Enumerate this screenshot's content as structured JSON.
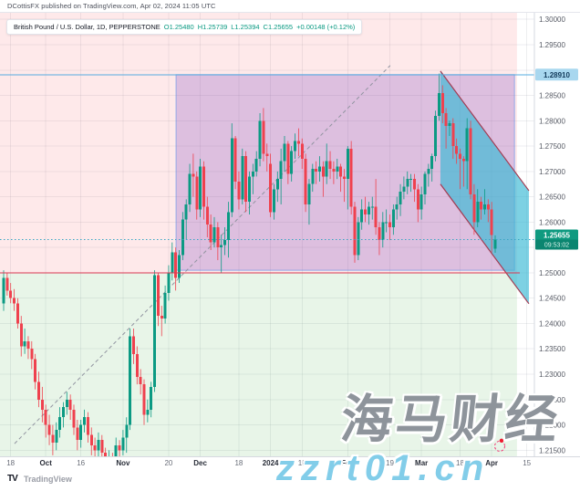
{
  "header": {
    "byline": "DCottisFX published on TradingView.com, Apr 02, 2024 11:05 UTC"
  },
  "legend": {
    "symbol": "British Pound / U.S. Dollar, 1D, PEPPERSTONE",
    "open": "O1.25480",
    "high": "H1.25739",
    "low": "L1.25394",
    "close": "C1.25655",
    "change": "+0.00148 (+0.12%)"
  },
  "watermark": {
    "line1": "海马财经",
    "line2": "zzrt01.cn"
  },
  "footer": {
    "logo_text": "TV",
    "brand": "TradingView"
  },
  "colors": {
    "up": "#0b9a83",
    "down": "#ef414e",
    "grid": "rgba(130,134,147,0.14)",
    "pink_zone": "rgba(247,82,95,0.13)",
    "green_zone": "rgba(76,175,80,0.13)",
    "purple_fill": "rgba(123,68,192,0.25)",
    "purple_stroke": "rgba(72,136,235,0.55)",
    "channel_fill": "rgba(56,185,212,0.65)",
    "channel_stroke": "#a33b52",
    "blue_line": "#55ace0",
    "blue_chip_bg": "#a8d7ef",
    "blue_chip_text": "#123a5a",
    "red_line": "#d93852",
    "current_line": "#3aa6c4",
    "current_chip_bg": "#0f9a80",
    "current_chip_bg2": "#0b8570",
    "trendline": "#9194a0",
    "axis_text": "#565a64",
    "marker": "#f23674",
    "marker_dot": "#f0192e"
  },
  "chart_data": {
    "type": "candlestick",
    "title": "British Pound / U.S. Dollar",
    "interval": "1D",
    "exchange": "PEPPERSTONE",
    "last": {
      "open": 1.2548,
      "high": 1.25739,
      "low": 1.25394,
      "close": 1.25655,
      "change": 0.00148,
      "change_pct": 0.12,
      "countdown": "09:53:02"
    },
    "y_axis": {
      "min": 1.2138,
      "max": 1.3013,
      "tick_step": 0.005,
      "grid_start": 1.215,
      "labels": [
        {
          "text": "1.30000",
          "price": 1.3
        },
        {
          "text": "1.29500",
          "price": 1.295
        },
        {
          "text": "1.28500",
          "price": 1.285
        },
        {
          "text": "1.28000",
          "price": 1.28
        },
        {
          "text": "1.27500",
          "price": 1.275
        },
        {
          "text": "1.27000",
          "price": 1.27
        },
        {
          "text": "1.26500",
          "price": 1.265
        },
        {
          "text": "1.26000",
          "price": 1.26
        },
        {
          "text": "1.25000",
          "price": 1.25
        },
        {
          "text": "1.24500",
          "price": 1.245
        },
        {
          "text": "1.24000",
          "price": 1.24
        },
        {
          "text": "1.23500",
          "price": 1.235
        },
        {
          "text": "1.23000",
          "price": 1.23
        },
        {
          "text": "1.22500",
          "price": 1.225
        },
        {
          "text": "1.22000",
          "price": 1.22
        },
        {
          "text": "1.21500",
          "price": 1.215
        }
      ]
    },
    "x_ticks": [
      {
        "label": "18",
        "day": 2,
        "minor": true
      },
      {
        "label": "Oct",
        "day": 12
      },
      {
        "label": "16",
        "day": 22,
        "minor": true
      },
      {
        "label": "Nov",
        "day": 34
      },
      {
        "label": "20",
        "day": 47,
        "minor": true
      },
      {
        "label": "Dec",
        "day": 56
      },
      {
        "label": "18",
        "day": 67,
        "minor": true
      },
      {
        "label": "2024",
        "day": 76
      },
      {
        "label": "15",
        "day": 85,
        "minor": true
      },
      {
        "label": "Feb",
        "day": 98
      },
      {
        "label": "19",
        "day": 110,
        "minor": true
      },
      {
        "label": "Mar",
        "day": 119
      },
      {
        "label": "18",
        "day": 130,
        "minor": true
      },
      {
        "label": "Apr",
        "day": 139
      },
      {
        "label": "15",
        "day": 149,
        "minor": true
      }
    ],
    "zones": [
      {
        "name": "supply-zone-pink",
        "d1": -1.04,
        "d2": 146.2,
        "p1": 1.3013,
        "p2": 1.25,
        "fill": "pink_zone"
      },
      {
        "name": "demand-zone-green",
        "d1": -1.04,
        "d2": 146.2,
        "p1": 1.25,
        "p2": 1.2138,
        "fill": "green_zone"
      },
      {
        "name": "range-box-purple",
        "d1": 49.1,
        "d2": 145.5,
        "p1": 1.2891,
        "p2": 1.2505,
        "fill": "purple_fill",
        "stroke": "purple_stroke"
      }
    ],
    "channel": {
      "name": "descending-parallel-channel",
      "points": [
        [
          124.4,
          1.2898
        ],
        [
          149.6,
          1.2662
        ],
        [
          149.6,
          1.2439
        ],
        [
          124.4,
          1.2675
        ]
      ]
    },
    "trendline": {
      "d1": 3.1,
      "p1": 1.2163,
      "d2": 110.1,
      "p2": 1.2909
    },
    "price_lines": [
      {
        "name": "high-line",
        "price": 1.2891,
        "label": "1.28910",
        "style": "solid",
        "color": "blue_line",
        "full_width": true
      },
      {
        "name": "support-line",
        "price": 1.25,
        "label": null,
        "style": "solid",
        "color": "red_line",
        "end_day": 147
      },
      {
        "name": "current-price-line",
        "price": 1.25655,
        "label": "1.25655",
        "countdown": "09:53:02",
        "style": "dotted",
        "color": "current_line",
        "full_width": true
      }
    ],
    "marker": {
      "ellipse": {
        "day": 141.3,
        "price": 1.2158,
        "rx": 5.5,
        "ry": 5.5
      },
      "dot": {
        "day": 141.8,
        "price": 1.2169,
        "r": 2.2
      }
    },
    "ohlc": [
      [
        "2023-09-14",
        1.244,
        1.2505,
        1.2425,
        1.249
      ],
      [
        "2023-09-15",
        1.249,
        1.25,
        1.2455,
        1.2465
      ],
      [
        "2023-09-18",
        1.2465,
        1.248,
        1.244,
        1.245
      ],
      [
        "2023-09-19",
        1.245,
        1.2468,
        1.2425,
        1.244
      ],
      [
        "2023-09-20",
        1.244,
        1.245,
        1.239,
        1.24
      ],
      [
        "2023-09-21",
        1.24,
        1.2415,
        1.2335,
        1.2355
      ],
      [
        "2023-09-22",
        1.2355,
        1.239,
        1.234,
        1.2365
      ],
      [
        "2023-09-25",
        1.2365,
        1.2375,
        1.233,
        1.235
      ],
      [
        "2023-09-26",
        1.235,
        1.2365,
        1.231,
        1.233
      ],
      [
        "2023-09-27",
        1.233,
        1.234,
        1.227,
        1.2285
      ],
      [
        "2023-09-28",
        1.2285,
        1.2305,
        1.2235,
        1.225
      ],
      [
        "2023-09-29",
        1.225,
        1.2275,
        1.2205,
        1.223
      ],
      [
        "2023-10-02",
        1.223,
        1.224,
        1.2175,
        1.22
      ],
      [
        "2023-10-03",
        1.22,
        1.222,
        1.216,
        1.218
      ],
      [
        "2023-10-04",
        1.218,
        1.22,
        1.214,
        1.2165
      ],
      [
        "2023-10-05",
        1.2165,
        1.2205,
        1.215,
        1.219
      ],
      [
        "2023-10-06",
        1.219,
        1.2235,
        1.2175,
        1.2215
      ],
      [
        "2023-10-09",
        1.2215,
        1.2245,
        1.2195,
        1.2235
      ],
      [
        "2023-10-10",
        1.2235,
        1.2265,
        1.222,
        1.225
      ],
      [
        "2023-10-11",
        1.225,
        1.226,
        1.221,
        1.223
      ],
      [
        "2023-10-12",
        1.223,
        1.224,
        1.218,
        1.2195
      ],
      [
        "2023-10-13",
        1.2195,
        1.221,
        1.215,
        1.217
      ],
      [
        "2023-10-16",
        1.217,
        1.221,
        1.2155,
        1.22
      ],
      [
        "2023-10-17",
        1.22,
        1.223,
        1.2185,
        1.2215
      ],
      [
        "2023-10-18",
        1.2215,
        1.2225,
        1.2165,
        1.218
      ],
      [
        "2023-10-19",
        1.218,
        1.2195,
        1.214,
        1.216
      ],
      [
        "2023-10-20",
        1.216,
        1.2175,
        1.213,
        1.215
      ],
      [
        "2023-10-23",
        1.215,
        1.2185,
        1.2135,
        1.217
      ],
      [
        "2023-10-24",
        1.217,
        1.218,
        1.213,
        1.2145
      ],
      [
        "2023-10-25",
        1.2145,
        1.2155,
        1.21,
        1.212
      ],
      [
        "2023-10-26",
        1.212,
        1.215,
        1.2105,
        1.2135
      ],
      [
        "2023-10-27",
        1.2135,
        1.2145,
        1.21,
        1.2125
      ],
      [
        "2023-10-30",
        1.2125,
        1.2175,
        1.2115,
        1.216
      ],
      [
        "2023-10-31",
        1.216,
        1.217,
        1.2125,
        1.215
      ],
      [
        "2023-11-01",
        1.215,
        1.219,
        1.214,
        1.2175
      ],
      [
        "2023-11-02",
        1.2175,
        1.2215,
        1.2145,
        1.22
      ],
      [
        "2023-11-03",
        1.22,
        1.239,
        1.219,
        1.2375
      ],
      [
        "2023-11-06",
        1.2375,
        1.239,
        1.232,
        1.234
      ],
      [
        "2023-11-07",
        1.234,
        1.2355,
        1.228,
        1.2295
      ],
      [
        "2023-11-08",
        1.2295,
        1.231,
        1.226,
        1.228
      ],
      [
        "2023-11-09",
        1.228,
        1.229,
        1.22,
        1.222
      ],
      [
        "2023-11-10",
        1.222,
        1.225,
        1.2205,
        1.223
      ],
      [
        "2023-11-13",
        1.223,
        1.2285,
        1.2215,
        1.2275
      ],
      [
        "2023-11-14",
        1.2275,
        1.2505,
        1.2265,
        1.2495
      ],
      [
        "2023-11-15",
        1.2495,
        1.25,
        1.2395,
        1.2415
      ],
      [
        "2023-11-16",
        1.2415,
        1.2435,
        1.2375,
        1.241
      ],
      [
        "2023-11-17",
        1.241,
        1.2475,
        1.24,
        1.246
      ],
      [
        "2023-11-20",
        1.246,
        1.2515,
        1.2445,
        1.25
      ],
      [
        "2023-11-21",
        1.25,
        1.256,
        1.2485,
        1.254
      ],
      [
        "2023-11-22",
        1.254,
        1.255,
        1.2465,
        1.249
      ],
      [
        "2023-11-23",
        1.249,
        1.2545,
        1.248,
        1.2535
      ],
      [
        "2023-11-24",
        1.2535,
        1.262,
        1.2525,
        1.2605
      ],
      [
        "2023-11-27",
        1.2605,
        1.2645,
        1.2565,
        1.2635
      ],
      [
        "2023-11-28",
        1.2635,
        1.2715,
        1.262,
        1.2695
      ],
      [
        "2023-11-29",
        1.2695,
        1.2735,
        1.265,
        1.269
      ],
      [
        "2023-11-30",
        1.269,
        1.27,
        1.2605,
        1.2625
      ],
      [
        "2023-12-01",
        1.2625,
        1.2725,
        1.261,
        1.271
      ],
      [
        "2023-12-04",
        1.271,
        1.272,
        1.2605,
        1.263
      ],
      [
        "2023-12-05",
        1.263,
        1.265,
        1.257,
        1.2595
      ],
      [
        "2023-12-06",
        1.2595,
        1.2615,
        1.2545,
        1.256
      ],
      [
        "2023-12-07",
        1.256,
        1.261,
        1.255,
        1.259
      ],
      [
        "2023-12-08",
        1.259,
        1.26,
        1.2525,
        1.255
      ],
      [
        "2023-12-11",
        1.255,
        1.2575,
        1.25,
        1.2555
      ],
      [
        "2023-12-12",
        1.2555,
        1.259,
        1.2535,
        1.2565
      ],
      [
        "2023-12-13",
        1.2565,
        1.264,
        1.253,
        1.262
      ],
      [
        "2023-12-14",
        1.262,
        1.2795,
        1.261,
        1.2765
      ],
      [
        "2023-12-15",
        1.2765,
        1.277,
        1.2665,
        1.268
      ],
      [
        "2023-12-18",
        1.268,
        1.27,
        1.2625,
        1.2645
      ],
      [
        "2023-12-19",
        1.2645,
        1.2745,
        1.2635,
        1.273
      ],
      [
        "2023-12-20",
        1.273,
        1.274,
        1.262,
        1.264
      ],
      [
        "2023-12-21",
        1.264,
        1.27,
        1.2615,
        1.269
      ],
      [
        "2023-12-22",
        1.269,
        1.2715,
        1.2655,
        1.27
      ],
      [
        "2023-12-26",
        1.27,
        1.274,
        1.269,
        1.2725
      ],
      [
        "2023-12-27",
        1.2725,
        1.2815,
        1.271,
        1.28
      ],
      [
        "2023-12-28",
        1.28,
        1.2825,
        1.272,
        1.2735
      ],
      [
        "2023-12-29",
        1.2735,
        1.2755,
        1.27,
        1.273
      ],
      [
        "2024-01-02",
        1.2715,
        1.2735,
        1.261,
        1.262
      ],
      [
        "2024-01-03",
        1.262,
        1.2675,
        1.2605,
        1.2665
      ],
      [
        "2024-01-04",
        1.2665,
        1.27,
        1.264,
        1.2685
      ],
      [
        "2024-01-05",
        1.2685,
        1.2745,
        1.2635,
        1.272
      ],
      [
        "2024-01-08",
        1.272,
        1.277,
        1.27,
        1.2755
      ],
      [
        "2024-01-09",
        1.2755,
        1.276,
        1.2675,
        1.2695
      ],
      [
        "2024-01-10",
        1.2695,
        1.275,
        1.268,
        1.274
      ],
      [
        "2024-01-11",
        1.274,
        1.2775,
        1.2725,
        1.276
      ],
      [
        "2024-01-12",
        1.276,
        1.2785,
        1.273,
        1.2755
      ],
      [
        "2024-01-15",
        1.2755,
        1.2765,
        1.2705,
        1.2725
      ],
      [
        "2024-01-16",
        1.2725,
        1.2735,
        1.262,
        1.2635
      ],
      [
        "2024-01-17",
        1.2635,
        1.2685,
        1.2595,
        1.2675
      ],
      [
        "2024-01-18",
        1.2675,
        1.2715,
        1.266,
        1.2705
      ],
      [
        "2024-01-19",
        1.2705,
        1.272,
        1.2675,
        1.27
      ],
      [
        "2024-01-22",
        1.27,
        1.273,
        1.268,
        1.271
      ],
      [
        "2024-01-23",
        1.271,
        1.272,
        1.265,
        1.269
      ],
      [
        "2024-01-24",
        1.269,
        1.2755,
        1.2675,
        1.272
      ],
      [
        "2024-01-25",
        1.272,
        1.274,
        1.2685,
        1.2705
      ],
      [
        "2024-01-26",
        1.2705,
        1.272,
        1.2675,
        1.27
      ],
      [
        "2024-01-29",
        1.27,
        1.2725,
        1.2685,
        1.271
      ],
      [
        "2024-01-30",
        1.271,
        1.2715,
        1.266,
        1.269
      ],
      [
        "2024-01-31",
        1.269,
        1.2705,
        1.264,
        1.2685
      ],
      [
        "2024-02-01",
        1.2685,
        1.275,
        1.2625,
        1.2745
      ],
      [
        "2024-02-02",
        1.2745,
        1.276,
        1.2615,
        1.263
      ],
      [
        "2024-02-05",
        1.263,
        1.264,
        1.252,
        1.2535
      ],
      [
        "2024-02-06",
        1.2535,
        1.261,
        1.2525,
        1.26
      ],
      [
        "2024-02-07",
        1.26,
        1.2645,
        1.2585,
        1.2625
      ],
      [
        "2024-02-08",
        1.2625,
        1.265,
        1.26,
        1.2615
      ],
      [
        "2024-02-09",
        1.2615,
        1.264,
        1.2595,
        1.263
      ],
      [
        "2024-02-12",
        1.263,
        1.265,
        1.2605,
        1.263
      ],
      [
        "2024-02-13",
        1.263,
        1.2685,
        1.2575,
        1.259
      ],
      [
        "2024-02-14",
        1.259,
        1.26,
        1.2535,
        1.2565
      ],
      [
        "2024-02-15",
        1.2565,
        1.262,
        1.255,
        1.26
      ],
      [
        "2024-02-16",
        1.26,
        1.2625,
        1.258,
        1.26
      ],
      [
        "2024-02-19",
        1.26,
        1.2615,
        1.2565,
        1.259
      ],
      [
        "2024-02-20",
        1.259,
        1.2635,
        1.2575,
        1.2625
      ],
      [
        "2024-02-21",
        1.2625,
        1.265,
        1.2605,
        1.2635
      ],
      [
        "2024-02-22",
        1.2635,
        1.2675,
        1.2612,
        1.266
      ],
      [
        "2024-02-23",
        1.266,
        1.269,
        1.2645,
        1.267
      ],
      [
        "2024-02-26",
        1.267,
        1.27,
        1.2655,
        1.2685
      ],
      [
        "2024-02-27",
        1.2685,
        1.2695,
        1.266,
        1.2685
      ],
      [
        "2024-02-28",
        1.2685,
        1.2695,
        1.264,
        1.2665
      ],
      [
        "2024-02-29",
        1.2665,
        1.2675,
        1.26,
        1.2625
      ],
      [
        "2024-03-01",
        1.2625,
        1.267,
        1.2605,
        1.2655
      ],
      [
        "2024-03-04",
        1.2655,
        1.27,
        1.2635,
        1.2695
      ],
      [
        "2024-03-05",
        1.2695,
        1.2715,
        1.267,
        1.2705
      ],
      [
        "2024-03-06",
        1.2705,
        1.2735,
        1.268,
        1.273
      ],
      [
        "2024-03-07",
        1.273,
        1.282,
        1.272,
        1.281
      ],
      [
        "2024-03-08",
        1.281,
        1.2893,
        1.28,
        1.2855
      ],
      [
        "2024-03-11",
        1.2855,
        1.287,
        1.2795,
        1.2815
      ],
      [
        "2024-03-12",
        1.2815,
        1.2825,
        1.2745,
        1.279
      ],
      [
        "2024-03-13",
        1.279,
        1.28,
        1.277,
        1.2795
      ],
      [
        "2024-03-14",
        1.2795,
        1.2805,
        1.2725,
        1.275
      ],
      [
        "2024-03-15",
        1.275,
        1.2765,
        1.2715,
        1.2735
      ],
      [
        "2024-03-18",
        1.2735,
        1.2745,
        1.2665,
        1.2725
      ],
      [
        "2024-03-19",
        1.2725,
        1.273,
        1.267,
        1.272
      ],
      [
        "2024-03-20",
        1.272,
        1.2805,
        1.2665,
        1.2785
      ],
      [
        "2024-03-21",
        1.2785,
        1.28,
        1.2645,
        1.2655
      ],
      [
        "2024-03-22",
        1.2655,
        1.2675,
        1.2575,
        1.26
      ],
      [
        "2024-03-25",
        1.26,
        1.2665,
        1.259,
        1.264
      ],
      [
        "2024-03-26",
        1.264,
        1.265,
        1.2605,
        1.2625
      ],
      [
        "2024-03-27",
        1.2625,
        1.2665,
        1.2615,
        1.2635
      ],
      [
        "2024-03-28",
        1.2635,
        1.2645,
        1.26,
        1.2625
      ],
      [
        "2024-04-01",
        1.2625,
        1.264,
        1.254,
        1.2575
      ],
      [
        "2024-04-02",
        1.2548,
        1.25739,
        1.25394,
        1.25655
      ]
    ]
  }
}
